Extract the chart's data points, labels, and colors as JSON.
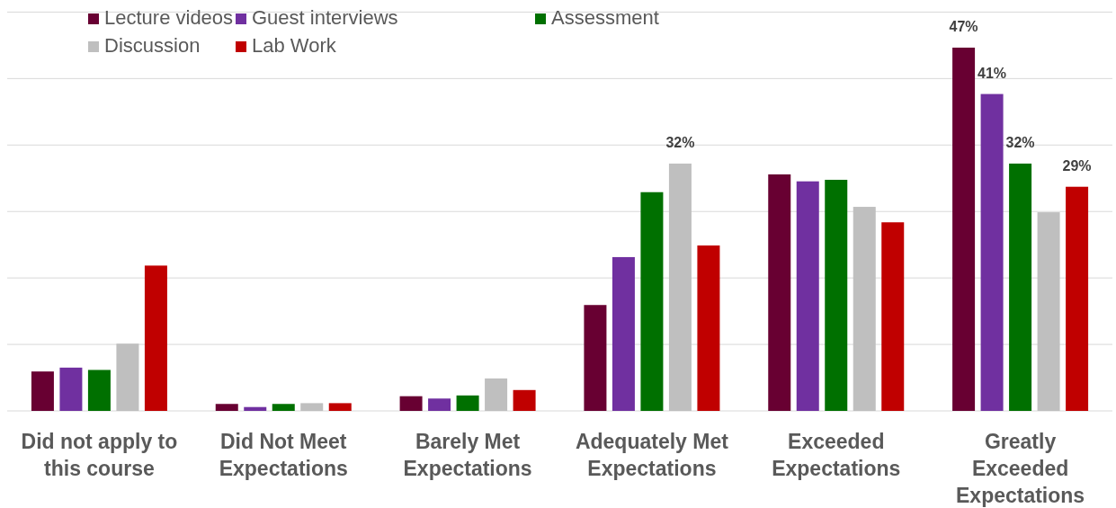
{
  "chart_data": {
    "type": "bar",
    "categories": [
      "Did not apply to this course",
      "Did Not Meet Expectations",
      "Barely Met Expectations",
      "Adequately Met Expectations",
      "Exceeded Expectations",
      "Greatly Exceeded Expectations"
    ],
    "series": [
      {
        "name": "Lecture videos",
        "color": "#680032",
        "values": [
          5.1,
          0.9,
          1.9,
          13.7,
          30.6,
          47
        ],
        "value_labels": [
          null,
          null,
          null,
          null,
          null,
          "47%"
        ]
      },
      {
        "name": "Guest interviews",
        "color": "#7030a0",
        "values": [
          5.6,
          0.5,
          1.6,
          19.9,
          29.7,
          41
        ],
        "value_labels": [
          null,
          null,
          null,
          null,
          null,
          "41%"
        ]
      },
      {
        "name": "Assessment",
        "color": "#007000",
        "values": [
          5.3,
          0.9,
          2.0,
          28.3,
          29.9,
          32
        ],
        "value_labels": [
          null,
          null,
          null,
          null,
          null,
          "32%"
        ]
      },
      {
        "name": "Discussion",
        "color": "#bfbfbf",
        "values": [
          8.7,
          1.0,
          4.2,
          32,
          26.4,
          25.7
        ],
        "value_labels": [
          null,
          null,
          null,
          "32%",
          null,
          null
        ]
      },
      {
        "name": "Lab Work",
        "color": "#c00000",
        "values": [
          18.8,
          1.0,
          2.7,
          21.4,
          24.4,
          29
        ],
        "value_labels": [
          null,
          null,
          null,
          null,
          null,
          "29%"
        ]
      }
    ],
    "ylim": [
      0,
      52
    ],
    "yticks": [
      {
        "value": 8.6,
        "label": null
      },
      {
        "value": 17.2,
        "label": null
      },
      {
        "value": 25.8,
        "label": null
      },
      {
        "value": 34.4,
        "label": null
      },
      {
        "value": 43,
        "label": null
      },
      {
        "value": 51.6,
        "label": null
      }
    ],
    "grid": true,
    "legend": "top left"
  }
}
